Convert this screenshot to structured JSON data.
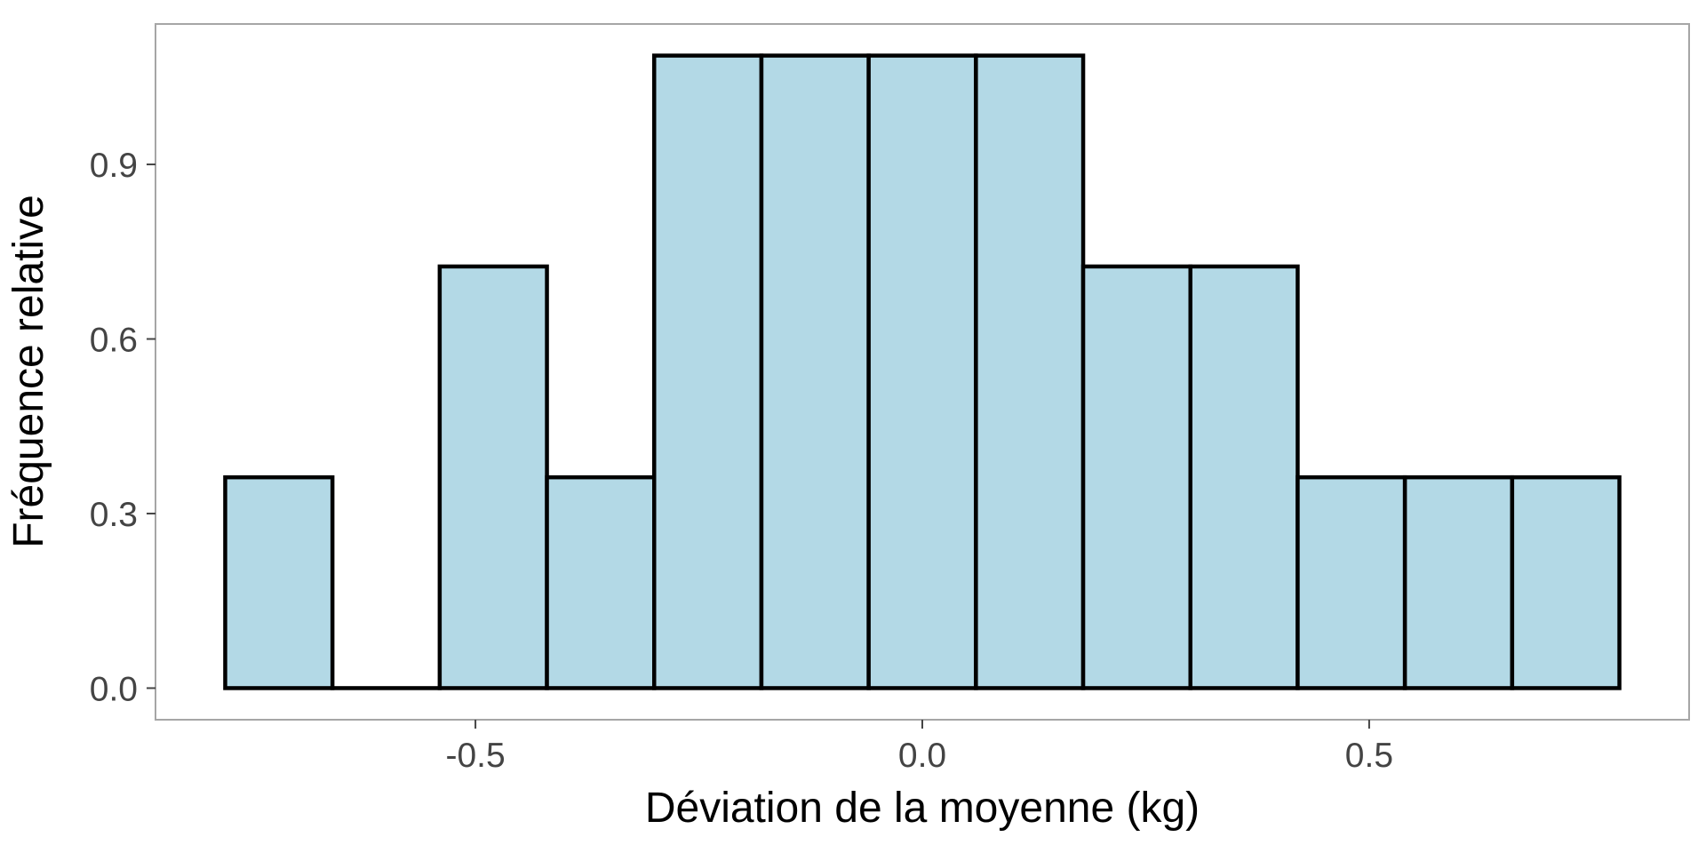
{
  "chart_data": {
    "type": "bar",
    "title": "",
    "xlabel": "Déviation de la moyenne (kg)",
    "ylabel": "Fréquence relative",
    "bins": [
      {
        "x0": -0.78,
        "x1": -0.66,
        "value": 0.3623
      },
      {
        "x0": -0.66,
        "x1": -0.54,
        "value": 0.0
      },
      {
        "x0": -0.54,
        "x1": -0.42,
        "value": 0.7246
      },
      {
        "x0": -0.42,
        "x1": -0.3,
        "value": 0.3623
      },
      {
        "x0": -0.3,
        "x1": -0.18,
        "value": 1.087
      },
      {
        "x0": -0.18,
        "x1": -0.06,
        "value": 1.087
      },
      {
        "x0": -0.06,
        "x1": 0.06,
        "value": 1.087
      },
      {
        "x0": 0.06,
        "x1": 0.18,
        "value": 1.087
      },
      {
        "x0": 0.18,
        "x1": 0.3,
        "value": 0.7246
      },
      {
        "x0": 0.3,
        "x1": 0.42,
        "value": 0.7246
      },
      {
        "x0": 0.42,
        "x1": 0.54,
        "value": 0.3623
      },
      {
        "x0": 0.54,
        "x1": 0.66,
        "value": 0.3623
      },
      {
        "x0": 0.66,
        "x1": 0.78,
        "value": 0.3623
      }
    ],
    "xlim": [
      -0.858,
      0.858
    ],
    "ylim": [
      -0.0543,
      1.1413
    ],
    "xticks": [
      {
        "value": -0.5,
        "label": "-0.5"
      },
      {
        "value": 0.0,
        "label": "0.0"
      },
      {
        "value": 0.5,
        "label": "0.5"
      }
    ],
    "yticks": [
      {
        "value": 0.0,
        "label": "0.0"
      },
      {
        "value": 0.3,
        "label": "0.3"
      },
      {
        "value": 0.6,
        "label": "0.6"
      },
      {
        "value": 0.9,
        "label": "0.9"
      }
    ],
    "grid": false,
    "colors": {
      "bar_fill": "#b3d9e6",
      "bar_stroke": "#000000",
      "panel_border": "#a6a6a6",
      "tick_color": "#444444"
    }
  }
}
